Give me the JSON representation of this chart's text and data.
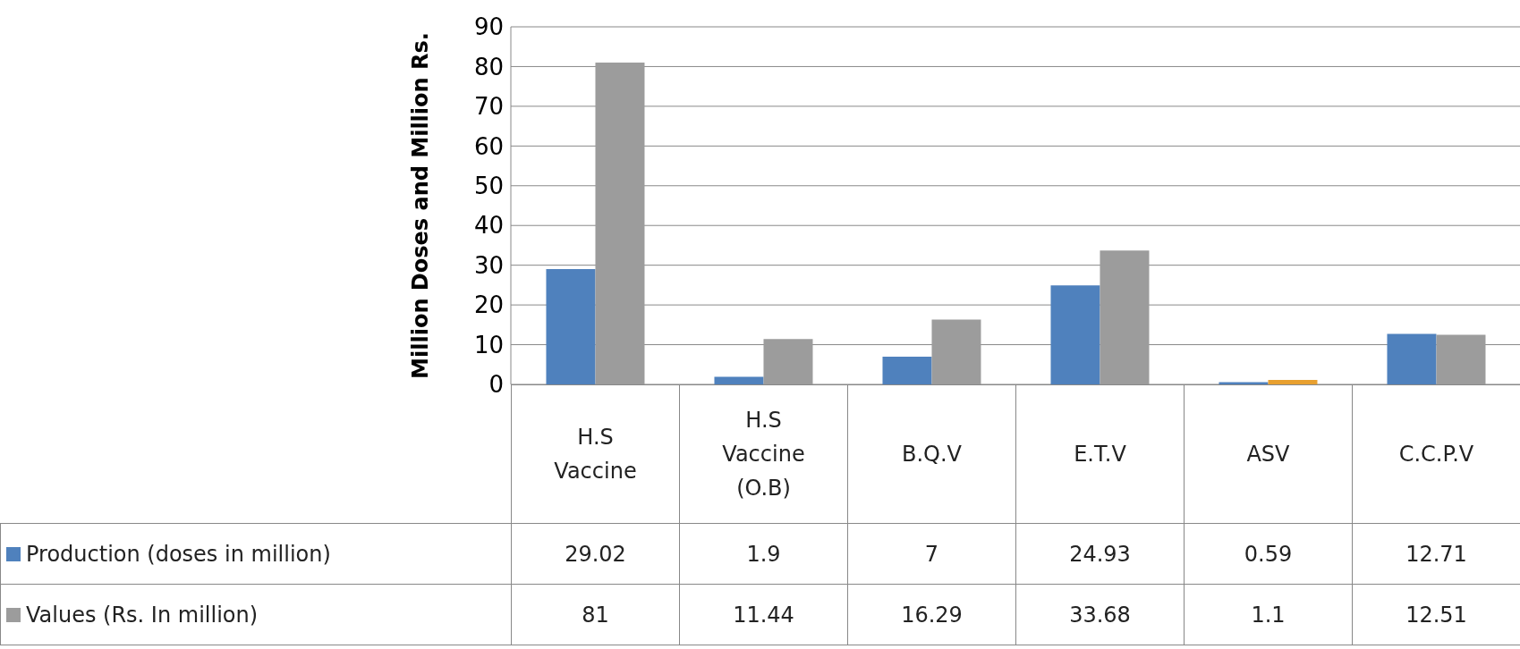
{
  "chart_data": {
    "type": "bar",
    "ylabel": "Million Doses and Million Rs.",
    "categories": [
      "H.S\nVaccine",
      "H.S\nVaccine\n(O.B)",
      "B.Q.V",
      "E.T.V",
      "ASV",
      "C.C.P.V"
    ],
    "series": [
      {
        "name": "Production (doses in million)",
        "color": "#4f81bd",
        "values": [
          29.02,
          1.9,
          7,
          24.93,
          0.59,
          12.71
        ]
      },
      {
        "name": "Values (Rs. In million)",
        "color": "#9c9c9c",
        "colors": [
          "#9c9c9c",
          "#9c9c9c",
          "#9c9c9c",
          "#9c9c9c",
          "#e8a030",
          "#9c9c9c"
        ],
        "values": [
          81,
          11.44,
          16.29,
          33.68,
          1.1,
          12.51
        ]
      }
    ],
    "ylim": [
      0,
      90
    ],
    "yticks": [
      0,
      10,
      20,
      30,
      40,
      50,
      60,
      70,
      80,
      90
    ],
    "grid": "y",
    "legend": "bottom left",
    "data_labels": true
  }
}
